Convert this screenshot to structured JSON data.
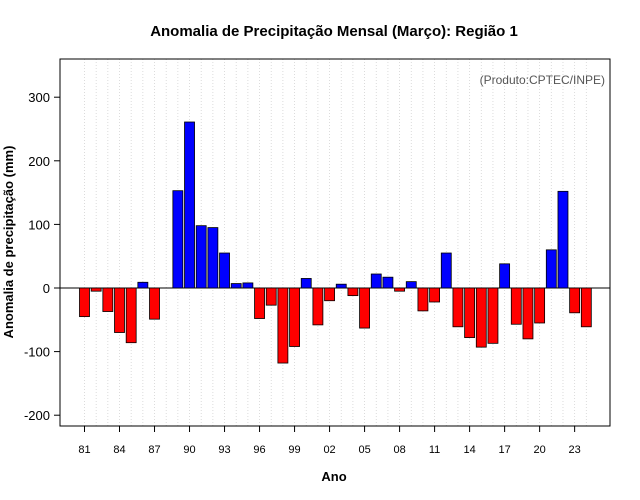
{
  "chart_data": {
    "type": "bar",
    "title": "Anomalia de Precipitação Mensal (Março): Região 1",
    "xlabel": "Ano",
    "ylabel": "Anomalia de precipitação (mm)",
    "credit": "(Produto:CPTEC/INPE)",
    "ylim": [
      -220,
      360
    ],
    "yticks": [
      -200,
      -100,
      0,
      100,
      200,
      300
    ],
    "xtick_labels": [
      "81",
      "84",
      "87",
      "90",
      "93",
      "96",
      "99",
      "02",
      "05",
      "08",
      "11",
      "14",
      "17",
      "20",
      "23"
    ],
    "xtick_every": 3,
    "categories": [
      "1981",
      "1982",
      "1983",
      "1984",
      "1985",
      "1986",
      "1987",
      "1988",
      "1989",
      "1990",
      "1991",
      "1992",
      "1993",
      "1994",
      "1995",
      "1996",
      "1997",
      "1998",
      "1999",
      "2000",
      "2001",
      "2002",
      "2003",
      "2004",
      "2005",
      "2006",
      "2007",
      "2008",
      "2009",
      "2010",
      "2011",
      "2012",
      "2013",
      "2014",
      "2015",
      "2016",
      "2017",
      "2018",
      "2019",
      "2020",
      "2021",
      "2022",
      "2023",
      "2024"
    ],
    "values": [
      -45,
      -5,
      -37,
      -70,
      -86,
      9,
      -49,
      0,
      153,
      261,
      98,
      95,
      55,
      7,
      8,
      -48,
      -27,
      -118,
      -92,
      15,
      -58,
      -20,
      6,
      -12,
      -63,
      22,
      17,
      -5,
      10,
      -36,
      -22,
      55,
      -61,
      -78,
      -93,
      -87,
      38,
      -57,
      -80,
      -55,
      60,
      152,
      -39,
      -61
    ],
    "colors": {
      "positive": "#0000ff",
      "negative": "#ff0000",
      "edge": "#000000",
      "grid": "#d3d3d3",
      "zero_line": "#000000"
    },
    "grid": true
  }
}
